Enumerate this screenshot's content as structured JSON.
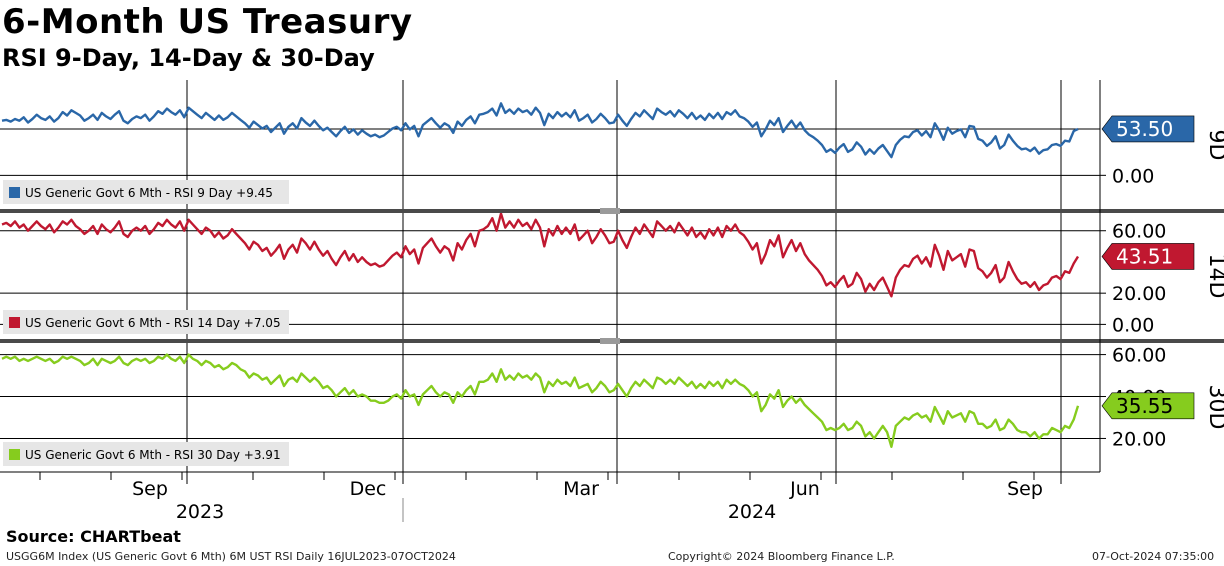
{
  "title": "6-Month US Treasury",
  "subtitle": "RSI 9-Day, 14-Day & 30-Day",
  "source": "Source: CHARTbeat",
  "footer": {
    "left": "USGG6M Index (US Generic Govt 6 Mth) 6M UST RSI  Daily 16JUL2023-07OCT2024",
    "center": "Copyright© 2024 Bloomberg Finance L.P.",
    "right": "07-Oct-2024 07:35:00"
  },
  "chart_data": [
    {
      "type": "line",
      "panel_label": "9D",
      "legend": "US Generic Govt 6 Mth - RSI 9 Day +9.45",
      "color": "#2a67a8",
      "last_value_label": "53.50",
      "y_ticks": [
        "0.00"
      ],
      "y_tick_values": [
        0
      ],
      "ylim": [
        -40,
        110
      ],
      "values": [
        63,
        64,
        62,
        65,
        63,
        67,
        61,
        65,
        70,
        66,
        64,
        68,
        62,
        66,
        73,
        69,
        75,
        72,
        69,
        63,
        66,
        70,
        64,
        72,
        68,
        65,
        70,
        74,
        63,
        60,
        65,
        68,
        66,
        70,
        63,
        68,
        74,
        71,
        77,
        73,
        70,
        75,
        67,
        78,
        74,
        70,
        66,
        72,
        68,
        64,
        69,
        64,
        67,
        72,
        68,
        64,
        60,
        55,
        62,
        58,
        54,
        57,
        50,
        55,
        60,
        48,
        56,
        60,
        54,
        66,
        61,
        57,
        63,
        57,
        52,
        55,
        50,
        45,
        51,
        56,
        49,
        53,
        47,
        52,
        48,
        45,
        47,
        44,
        46,
        50,
        54,
        56,
        52,
        60,
        53,
        57,
        45,
        58,
        62,
        66,
        60,
        55,
        60,
        57,
        49,
        62,
        57,
        64,
        68,
        60,
        70,
        71,
        73,
        77,
        69,
        83,
        72,
        76,
        71,
        77,
        73,
        75,
        70,
        78,
        72,
        58,
        71,
        66,
        73,
        68,
        72,
        67,
        75,
        63,
        66,
        70,
        61,
        65,
        71,
        66,
        60,
        61,
        70,
        63,
        57,
        65,
        72,
        68,
        75,
        70,
        65,
        77,
        73,
        70,
        74,
        68,
        75,
        71,
        66,
        72,
        65,
        69,
        64,
        71,
        66,
        72,
        65,
        73,
        70,
        75,
        68,
        66,
        62,
        56,
        61,
        45,
        53,
        63,
        58,
        66,
        50,
        57,
        63,
        55,
        61,
        52,
        47,
        44,
        40,
        35,
        27,
        30,
        26,
        32,
        36,
        27,
        30,
        38,
        33,
        24,
        30,
        25,
        31,
        35,
        28,
        21,
        35,
        41,
        45,
        44,
        50,
        52,
        46,
        51,
        44,
        60,
        52,
        41,
        55,
        48,
        51,
        53,
        44,
        57,
        56,
        42,
        40,
        34,
        38,
        45,
        31,
        35,
        47,
        40,
        34,
        30,
        31,
        28,
        32,
        25,
        29,
        30,
        35,
        36,
        34,
        40,
        39,
        51,
        53.5
      ]
    },
    {
      "type": "line",
      "panel_label": "14D",
      "legend": "US Generic Govt 6 Mth - RSI 14 Day +7.05",
      "color": "#c01830",
      "last_value_label": "43.51",
      "y_ticks": [
        "60.00",
        "20.00",
        "0.00"
      ],
      "y_tick_values": [
        60,
        20,
        0
      ],
      "ylim": [
        -10,
        72
      ],
      "values": [
        64,
        65,
        63,
        66,
        62,
        64,
        60,
        63,
        66,
        63,
        61,
        64,
        59,
        62,
        66,
        64,
        67,
        63,
        61,
        58,
        60,
        63,
        58,
        64,
        61,
        59,
        62,
        66,
        58,
        56,
        60,
        62,
        60,
        63,
        58,
        61,
        65,
        63,
        67,
        64,
        62,
        66,
        60,
        67,
        64,
        61,
        58,
        62,
        60,
        56,
        59,
        55,
        57,
        61,
        58,
        55,
        52,
        48,
        53,
        51,
        47,
        49,
        44,
        47,
        51,
        42,
        48,
        51,
        46,
        55,
        52,
        48,
        53,
        48,
        44,
        47,
        42,
        38,
        43,
        47,
        41,
        45,
        40,
        43,
        40,
        38,
        39,
        37,
        38,
        41,
        44,
        46,
        43,
        50,
        45,
        48,
        39,
        49,
        52,
        55,
        50,
        46,
        50,
        48,
        41,
        52,
        48,
        54,
        58,
        50,
        60,
        61,
        63,
        68,
        60,
        71,
        62,
        66,
        62,
        67,
        63,
        65,
        61,
        67,
        62,
        50,
        61,
        57,
        63,
        58,
        62,
        58,
        64,
        54,
        57,
        60,
        52,
        56,
        61,
        57,
        52,
        53,
        60,
        54,
        49,
        56,
        62,
        58,
        64,
        60,
        56,
        66,
        63,
        60,
        63,
        59,
        65,
        61,
        57,
        62,
        56,
        59,
        55,
        61,
        57,
        62,
        56,
        63,
        60,
        64,
        59,
        57,
        53,
        48,
        52,
        39,
        45,
        54,
        50,
        57,
        43,
        49,
        54,
        47,
        52,
        45,
        41,
        38,
        35,
        31,
        25,
        27,
        24,
        28,
        31,
        24,
        26,
        33,
        29,
        21,
        26,
        22,
        27,
        30,
        24,
        18,
        30,
        35,
        38,
        37,
        42,
        44,
        39,
        43,
        37,
        51,
        44,
        35,
        47,
        41,
        43,
        45,
        37,
        48,
        47,
        36,
        34,
        30,
        33,
        38,
        27,
        30,
        40,
        34,
        29,
        26,
        27,
        24,
        27,
        22,
        25,
        26,
        30,
        31,
        29,
        34,
        33,
        39,
        43.51
      ]
    },
    {
      "type": "line",
      "panel_label": "30D",
      "legend": "US Generic Govt 6 Mth - RSI 30 Day +3.91",
      "color": "#86cc1e",
      "last_value_label": "35.55",
      "y_ticks": [
        "60.00",
        "40.00",
        "20.00"
      ],
      "y_tick_values": [
        60,
        40,
        20
      ],
      "ylim": [
        4,
        66
      ],
      "values": [
        58,
        59,
        58,
        59,
        57,
        58,
        57,
        58,
        59,
        58,
        57,
        58,
        56,
        57,
        59,
        58,
        59,
        58,
        57,
        55,
        56,
        58,
        55,
        58,
        57,
        56,
        57,
        59,
        56,
        55,
        57,
        58,
        57,
        58,
        56,
        57,
        59,
        58,
        60,
        58,
        57,
        59,
        56,
        60,
        58,
        57,
        55,
        57,
        56,
        54,
        55,
        53,
        54,
        56,
        55,
        53,
        52,
        49,
        51,
        50,
        48,
        49,
        46,
        48,
        50,
        45,
        48,
        49,
        47,
        51,
        49,
        47,
        49,
        47,
        44,
        45,
        43,
        40,
        42,
        44,
        41,
        43,
        40,
        41,
        40,
        38,
        38,
        37,
        37,
        38,
        40,
        41,
        39,
        43,
        40,
        41,
        36,
        41,
        43,
        45,
        42,
        40,
        42,
        41,
        37,
        42,
        40,
        43,
        45,
        41,
        47,
        47,
        48,
        51,
        47,
        53,
        48,
        50,
        48,
        51,
        49,
        50,
        48,
        51,
        49,
        42,
        47,
        45,
        48,
        46,
        47,
        45,
        49,
        44,
        45,
        46,
        42,
        44,
        47,
        45,
        42,
        43,
        46,
        43,
        40,
        44,
        47,
        45,
        48,
        46,
        44,
        49,
        48,
        46,
        48,
        46,
        49,
        47,
        45,
        47,
        44,
        46,
        44,
        47,
        45,
        47,
        44,
        48,
        46,
        48,
        46,
        45,
        43,
        40,
        42,
        33,
        36,
        41,
        39,
        43,
        35,
        38,
        40,
        37,
        39,
        36,
        34,
        32,
        30,
        28,
        24,
        25,
        24,
        25,
        27,
        24,
        25,
        28,
        26,
        21,
        23,
        20,
        23,
        26,
        23,
        16,
        26,
        28,
        30,
        29,
        31,
        32,
        30,
        31,
        28,
        35,
        31,
        27,
        33,
        30,
        31,
        32,
        28,
        33,
        32,
        27,
        27,
        25,
        26,
        29,
        24,
        25,
        29,
        27,
        24,
        23,
        23,
        21,
        23,
        20,
        22,
        22,
        25,
        24,
        23,
        26,
        25,
        29,
        35.55
      ]
    }
  ],
  "x_axis": {
    "months": [
      "Sep",
      "Dec",
      "Mar",
      "Jun",
      "Sep"
    ],
    "years": [
      "2023",
      "2024"
    ]
  }
}
